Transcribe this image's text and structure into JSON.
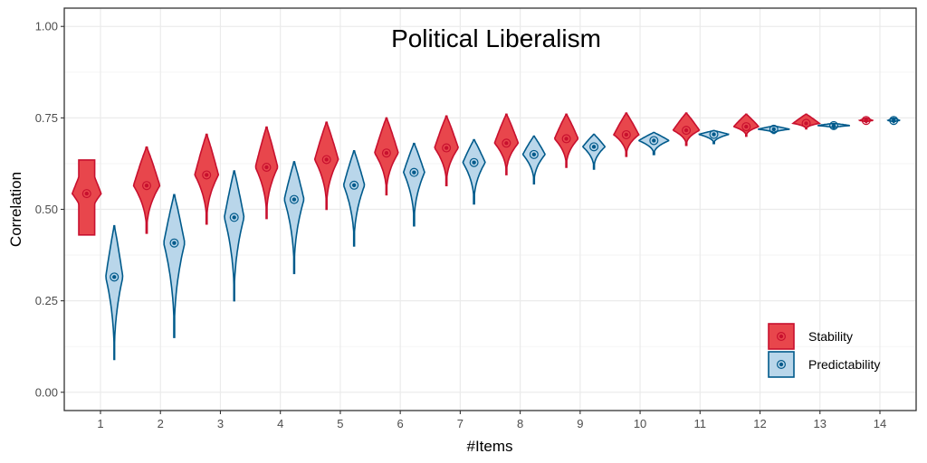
{
  "chart_data": {
    "type": "violin",
    "title": "Political Liberalism",
    "xlabel": "#Items",
    "ylabel": "Correlation",
    "ylim": [
      -0.05,
      1.05
    ],
    "yticks": [
      "0.00",
      "0.25",
      "0.50",
      "0.75",
      "1.00"
    ],
    "categories": [
      "1",
      "2",
      "3",
      "4",
      "5",
      "6",
      "7",
      "8",
      "9",
      "10",
      "11",
      "12",
      "13",
      "14"
    ],
    "grid": true,
    "legend_position": "bottom-right",
    "series": [
      {
        "name": "Stability",
        "color": "#e8383d",
        "fill": "#e8464c",
        "stroke": "#c8102e",
        "median": [
          0.543,
          0.565,
          0.594,
          0.615,
          0.636,
          0.654,
          0.668,
          0.681,
          0.693,
          0.704,
          0.716,
          0.726,
          0.735,
          0.743
        ],
        "min": [
          0.43,
          0.435,
          0.46,
          0.475,
          0.5,
          0.54,
          0.565,
          0.595,
          0.615,
          0.645,
          0.675,
          0.7,
          0.72,
          0.737
        ],
        "max": [
          0.635,
          0.67,
          0.705,
          0.725,
          0.738,
          0.75,
          0.755,
          0.76,
          0.76,
          0.763,
          0.763,
          0.76,
          0.76,
          0.75
        ],
        "halfwidth": [
          0.22,
          0.2,
          0.18,
          0.17,
          0.18,
          0.18,
          0.18,
          0.18,
          0.18,
          0.19,
          0.2,
          0.19,
          0.2,
          0.1
        ]
      },
      {
        "name": "Predictability",
        "color": "#005a8b",
        "fill": "#b9d6ea",
        "stroke": "#005a8b",
        "median": [
          0.315,
          0.408,
          0.478,
          0.527,
          0.566,
          0.601,
          0.628,
          0.65,
          0.671,
          0.688,
          0.705,
          0.719,
          0.729,
          0.743
        ],
        "min": [
          0.09,
          0.15,
          0.25,
          0.325,
          0.4,
          0.455,
          0.515,
          0.57,
          0.61,
          0.65,
          0.68,
          0.708,
          0.722,
          0.737
        ],
        "max": [
          0.455,
          0.54,
          0.605,
          0.63,
          0.66,
          0.68,
          0.69,
          0.7,
          0.705,
          0.71,
          0.715,
          0.728,
          0.735,
          0.75
        ],
        "halfwidth": [
          0.13,
          0.16,
          0.15,
          0.15,
          0.16,
          0.16,
          0.17,
          0.17,
          0.17,
          0.23,
          0.23,
          0.24,
          0.25,
          0.09
        ]
      }
    ]
  }
}
